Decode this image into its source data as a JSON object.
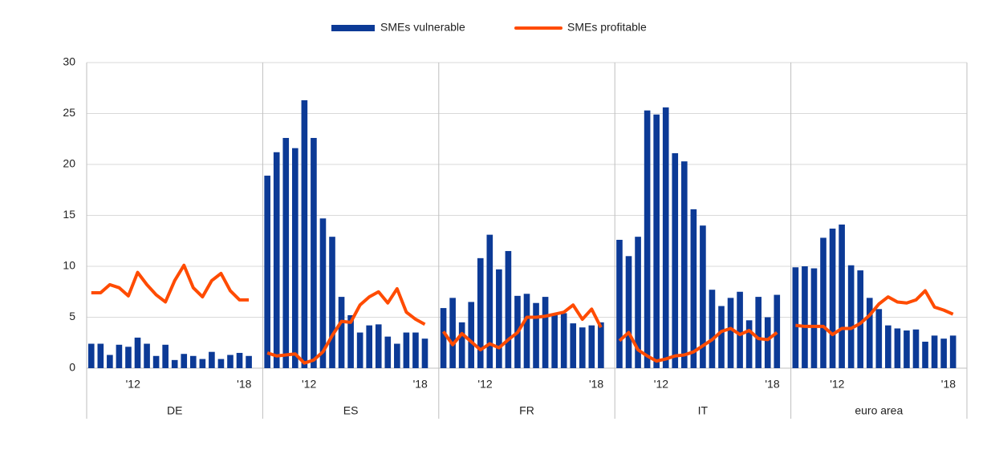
{
  "chart_data": {
    "type": "bar",
    "categories": [
      "DE",
      "ES",
      "FR",
      "IT",
      "euro area"
    ],
    "x_labels": [
      null,
      null,
      null,
      null,
      "'12",
      null,
      null,
      null,
      null,
      null,
      null,
      null,
      null,
      null,
      null,
      null,
      "'18",
      null
    ],
    "ylim": [
      0,
      30
    ],
    "yticks": [
      0,
      5,
      10,
      15,
      20,
      25,
      30
    ],
    "grid": true,
    "series": [
      {
        "name": "SMEs vulnerable",
        "color": "#0c3a96",
        "type": "bar",
        "values": [
          [
            2.4,
            2.4,
            1.3,
            2.3,
            2.1,
            3.0,
            2.4,
            1.2,
            2.3,
            0.8,
            1.4,
            1.2,
            0.9,
            1.6,
            0.9,
            1.3,
            1.5,
            1.2
          ],
          [
            18.9,
            21.2,
            22.6,
            21.6,
            26.3,
            22.6,
            14.7,
            12.9,
            7.0,
            5.2,
            3.5,
            4.2,
            4.3,
            3.1,
            2.4,
            3.5,
            3.5,
            2.9
          ],
          [
            5.9,
            6.9,
            4.5,
            6.5,
            10.8,
            13.1,
            9.7,
            11.5,
            7.1,
            7.3,
            6.4,
            7.0,
            5.2,
            5.4,
            4.4,
            4.0,
            4.2,
            4.5
          ],
          [
            12.6,
            11.0,
            12.9,
            25.3,
            24.9,
            25.6,
            21.1,
            20.3,
            15.6,
            14.0,
            7.7,
            6.1,
            6.9,
            7.5,
            4.7,
            7.0,
            5.0,
            7.2
          ],
          [
            9.9,
            10.0,
            9.8,
            12.8,
            13.7,
            14.1,
            10.1,
            9.6,
            6.9,
            5.8,
            4.2,
            3.9,
            3.7,
            3.8,
            2.6,
            3.2,
            2.9,
            3.2
          ]
        ]
      },
      {
        "name": "SMEs profitable",
        "color": "#ff4b00",
        "type": "line",
        "values": [
          [
            7.4,
            7.4,
            8.2,
            7.9,
            7.1,
            9.4,
            8.2,
            7.2,
            6.5,
            8.6,
            10.1,
            7.9,
            7.0,
            8.6,
            9.3,
            7.6,
            6.7,
            6.7
          ],
          [
            1.5,
            1.2,
            1.3,
            1.4,
            0.5,
            0.8,
            1.6,
            3.2,
            4.6,
            4.5,
            6.2,
            7.0,
            7.5,
            6.4,
            7.8,
            5.5,
            4.8,
            4.3
          ],
          [
            3.6,
            2.3,
            3.4,
            2.6,
            1.8,
            2.4,
            2.0,
            2.8,
            3.5,
            5.0,
            5.0,
            5.1,
            5.3,
            5.5,
            6.2,
            4.8,
            5.8,
            4.0
          ],
          [
            2.7,
            3.5,
            1.8,
            1.2,
            0.7,
            0.9,
            1.2,
            1.3,
            1.6,
            2.2,
            2.8,
            3.6,
            3.9,
            3.3,
            3.7,
            2.9,
            2.8,
            3.5
          ],
          [
            4.2,
            4.1,
            4.1,
            4.1,
            3.3,
            3.9,
            3.9,
            4.4,
            5.2,
            6.3,
            7.0,
            6.5,
            6.4,
            6.7,
            7.6,
            6.0,
            5.7,
            5.3
          ]
        ]
      }
    ]
  }
}
